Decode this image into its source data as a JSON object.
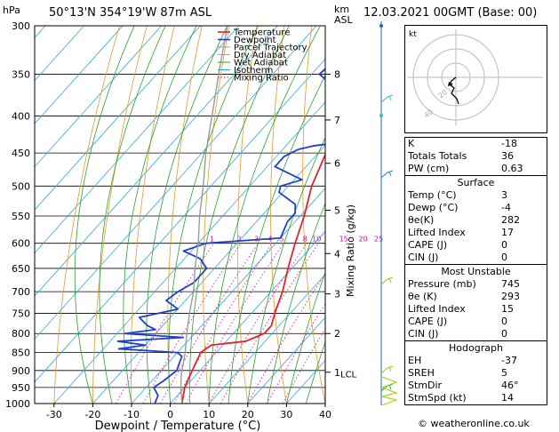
{
  "header": {
    "location": "50°13'N  354°19'W  87m  ASL",
    "datetime": "12.03.2021  00GMT  (Base: 00)",
    "unit_pressure": "hPa",
    "unit_km_line1": "km",
    "unit_km_line2": "ASL"
  },
  "chart_data": {
    "type": "line",
    "title": "50°13'N  354°19'W  87m  ASL",
    "xlabel": "Dewpoint / Temperature (°C)",
    "ylabel": "hPa",
    "right_axis_label": "Mixing Ratio (g/kg)",
    "xlim": [
      -35,
      40
    ],
    "ylim": [
      1000,
      300
    ],
    "pressure_ticks": [
      300,
      350,
      400,
      450,
      500,
      550,
      600,
      650,
      700,
      750,
      800,
      850,
      900,
      950,
      1000
    ],
    "temp_ticks": [
      -30,
      -20,
      -10,
      0,
      10,
      20,
      30,
      40
    ],
    "km_ticks": [
      {
        "label": "8",
        "p": 350
      },
      {
        "label": "7",
        "p": 405
      },
      {
        "label": "6",
        "p": 465
      },
      {
        "label": "5",
        "p": 540
      },
      {
        "label": "4",
        "p": 620
      },
      {
        "label": "3",
        "p": 705
      },
      {
        "label": "2",
        "p": 800
      },
      {
        "label": "1",
        "p": 905
      }
    ],
    "lcl_label": "LCL",
    "lcl_p": 910,
    "mixing_ratio_labels": [
      "1",
      "2",
      "3",
      "4",
      "5",
      "8",
      "10",
      "15",
      "20",
      "25"
    ],
    "legend": [
      "Temperature",
      "Dewpoint",
      "Parcel Trajectory",
      "Dry Adiabat",
      "Wet Adiabat",
      "Isotherm",
      "Mixing Ratio"
    ],
    "legend_position": "top-right",
    "series": [
      {
        "name": "Temperature",
        "points": [
          [
            1000,
            3
          ],
          [
            950,
            0
          ],
          [
            900,
            -2
          ],
          [
            850,
            -4
          ],
          [
            830,
            -3
          ],
          [
            820,
            5
          ],
          [
            800,
            8
          ],
          [
            780,
            8
          ],
          [
            750,
            6
          ],
          [
            700,
            3
          ],
          [
            650,
            -1
          ],
          [
            600,
            -5
          ],
          [
            550,
            -9
          ],
          [
            500,
            -14
          ],
          [
            450,
            -18
          ],
          [
            400,
            -24
          ],
          [
            350,
            -32
          ],
          [
            300,
            -39
          ]
        ]
      },
      {
        "name": "Dewpoint",
        "points": [
          [
            1000,
            -4
          ],
          [
            975,
            -5
          ],
          [
            950,
            -8
          ],
          [
            930,
            -7
          ],
          [
            900,
            -6
          ],
          [
            860,
            -8
          ],
          [
            850,
            -10
          ],
          [
            840,
            -26
          ],
          [
            830,
            -20
          ],
          [
            820,
            -28
          ],
          [
            810,
            -12
          ],
          [
            800,
            -28
          ],
          [
            790,
            -21
          ],
          [
            780,
            -24
          ],
          [
            760,
            -28
          ],
          [
            740,
            -20
          ],
          [
            720,
            -25
          ],
          [
            700,
            -24
          ],
          [
            680,
            -22
          ],
          [
            650,
            -22
          ],
          [
            630,
            -26
          ],
          [
            615,
            -32
          ],
          [
            600,
            -28
          ],
          [
            590,
            -10
          ],
          [
            560,
            -12
          ],
          [
            545,
            -12
          ],
          [
            530,
            -14
          ],
          [
            510,
            -21
          ],
          [
            500,
            -22
          ],
          [
            490,
            -18
          ],
          [
            470,
            -28
          ],
          [
            455,
            -28
          ],
          [
            445,
            -26
          ],
          [
            440,
            -23
          ],
          [
            435,
            -17
          ],
          [
            425,
            -18
          ],
          [
            410,
            -20
          ],
          [
            390,
            -20
          ],
          [
            350,
            -38
          ],
          [
            330,
            -37
          ],
          [
            300,
            -37
          ]
        ]
      },
      {
        "name": "Parcel Trajectory",
        "points": [
          [
            1000,
            3
          ],
          [
            950,
            -1
          ],
          [
            910,
            -4
          ],
          [
            850,
            -8
          ],
          [
            800,
            -12
          ],
          [
            750,
            -16
          ],
          [
            700,
            -20
          ],
          [
            650,
            -25
          ],
          [
            600,
            -30
          ],
          [
            550,
            -36
          ],
          [
            500,
            -42
          ],
          [
            450,
            -49
          ],
          [
            400,
            -56
          ],
          [
            350,
            -64
          ],
          [
            300,
            -73
          ]
        ]
      }
    ]
  },
  "hodograph": {
    "label": "kt",
    "ring_labels": [
      "20",
      "40"
    ]
  },
  "indices": {
    "rows": [
      {
        "label": "K",
        "value": "-18"
      },
      {
        "label": "Totals Totals",
        "value": "36"
      },
      {
        "label": "PW (cm)",
        "value": "0.63"
      }
    ]
  },
  "surface": {
    "title": "Surface",
    "rows": [
      {
        "label": "Temp (°C)",
        "value": "3"
      },
      {
        "label": "Dewp (°C)",
        "value": "-4"
      },
      {
        "label": "θe(K)",
        "value": "282"
      },
      {
        "label": "Lifted Index",
        "value": "17"
      },
      {
        "label": "CAPE (J)",
        "value": "0"
      },
      {
        "label": "CIN (J)",
        "value": "0"
      }
    ]
  },
  "most_unstable": {
    "title": "Most Unstable",
    "rows": [
      {
        "label": "Pressure (mb)",
        "value": "745"
      },
      {
        "label": "θe (K)",
        "value": "293"
      },
      {
        "label": "Lifted Index",
        "value": "15"
      },
      {
        "label": "CAPE (J)",
        "value": "0"
      },
      {
        "label": "CIN (J)",
        "value": "0"
      }
    ]
  },
  "hodograph_table": {
    "title": "Hodograph",
    "rows": [
      {
        "label": "EH",
        "value": "-37"
      },
      {
        "label": "SREH",
        "value": "5"
      },
      {
        "label": "StmDir",
        "value": "46°"
      },
      {
        "label": "StmSpd (kt)",
        "value": "14"
      }
    ]
  },
  "footer": {
    "credit": "© weatheronline.co.uk"
  },
  "colors": {
    "temperature": "#e8202a",
    "dewpoint": "#1f3fcf",
    "parcel": "#9a9a9a",
    "dry_adiabat": "#e39a2b",
    "wet_adiabat": "#2ca02c",
    "isotherm": "#2fa7e0",
    "mixing_ratio": "#d0108c",
    "wind_barb": "#8fd400"
  }
}
